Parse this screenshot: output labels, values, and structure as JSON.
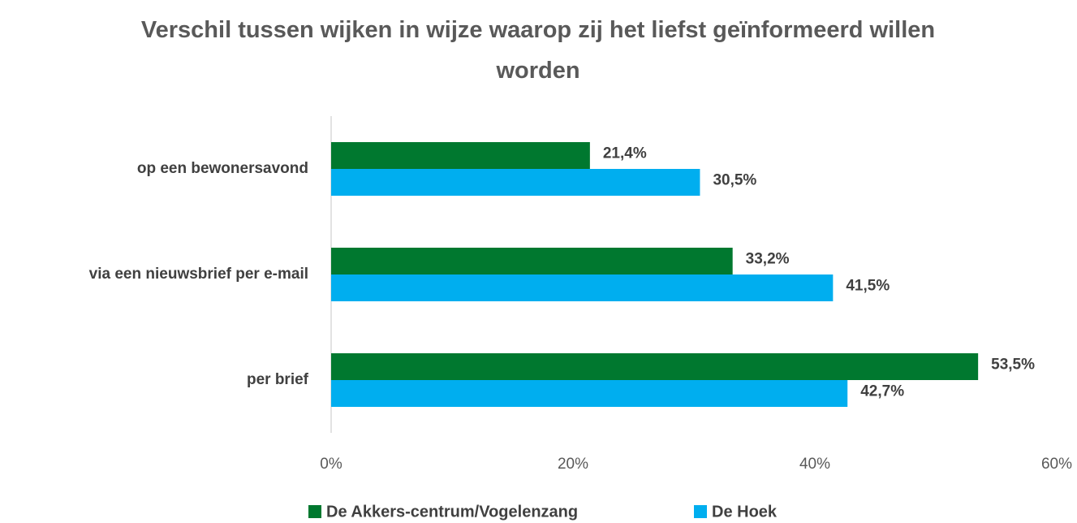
{
  "chart_data": {
    "type": "bar",
    "orientation": "horizontal",
    "title": "Verschil tussen wijken in wijze waarop zij het liefst geïnformeerd willen worden",
    "categories": [
      "op een bewonersavond",
      "via een nieuwsbrief per e-mail",
      "per brief"
    ],
    "series": [
      {
        "name": "De Akkers-centrum/Vogelenzang",
        "color": "#00782f",
        "values": [
          21.4,
          33.2,
          53.5
        ],
        "value_labels": [
          "21,4%",
          "33,2%",
          "53,5%"
        ]
      },
      {
        "name": "De Hoek",
        "color": "#00aeef",
        "values": [
          30.5,
          41.5,
          42.7
        ],
        "value_labels": [
          "30,5%",
          "41,5%",
          "42,7%"
        ]
      }
    ],
    "xlim": [
      0,
      60
    ],
    "xticks": [
      {
        "value": 0,
        "label": "0%"
      },
      {
        "value": 20,
        "label": "20%"
      },
      {
        "value": 40,
        "label": "40%"
      },
      {
        "value": 60,
        "label": "60%"
      }
    ],
    "legend": "bottom"
  }
}
